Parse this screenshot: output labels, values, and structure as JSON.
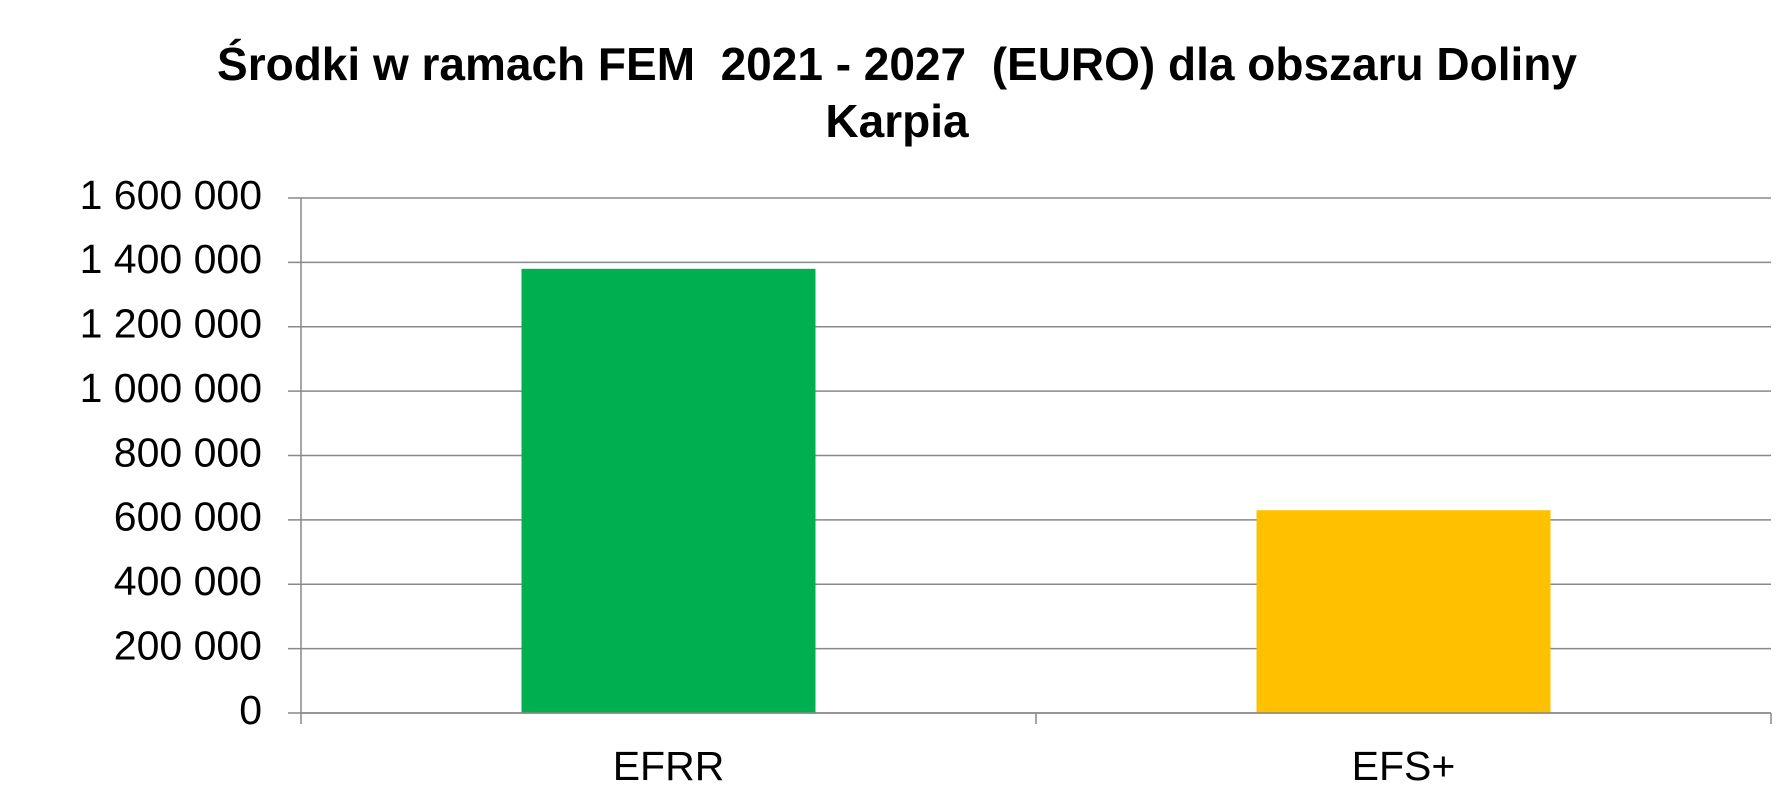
{
  "chart_data": {
    "type": "bar",
    "title": "Środki w ramach FEM  2021 - 2027  (EURO) dla obszaru Doliny Karpia",
    "categories": [
      "EFRR",
      "EFS+"
    ],
    "values": [
      1380000,
      630000
    ],
    "colors": [
      "#00b050",
      "#ffc000"
    ],
    "ylim": [
      0,
      1600000
    ],
    "yticks": [
      0,
      {
        "value": 200000,
        "label": "200 000"
      },
      {
        "value": 400000,
        "label": "400 000"
      },
      {
        "value": 600000,
        "label": "600 000"
      },
      {
        "value": 800000,
        "label": "800 000"
      },
      {
        "value": 1000000,
        "label": "1 000 000"
      },
      {
        "value": 1200000,
        "label": "1 200 000"
      },
      {
        "value": 1400000,
        "label": "1 400 000"
      },
      {
        "value": 1600000,
        "label": "1 600 000"
      }
    ],
    "grid": true
  }
}
